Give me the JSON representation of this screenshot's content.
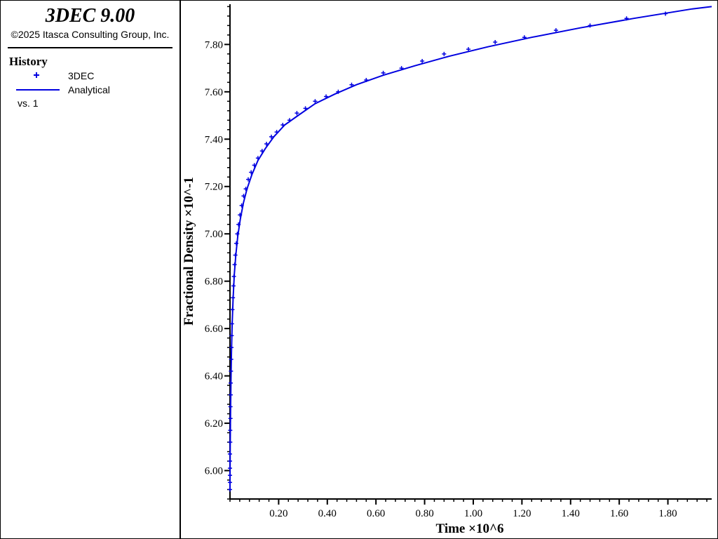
{
  "app": {
    "title": "3DEC 9.00",
    "copyright": "©2025 Itasca Consulting Group, Inc."
  },
  "legend": {
    "title": "History",
    "items": [
      {
        "label": "3DEC",
        "marker": "plus",
        "color": "#0000e0"
      },
      {
        "label": "Analytical",
        "marker": "line",
        "color": "#0000e0"
      }
    ],
    "vs": "vs. 1"
  },
  "chart_data": {
    "type": "line",
    "xlabel": "Time ×10^6",
    "ylabel": "Fractional Density ×10^-1",
    "xlim": [
      0,
      1.98
    ],
    "ylim": [
      5.88,
      7.97
    ],
    "x_ticks": [
      "0.20",
      "0.40",
      "0.60",
      "0.80",
      "1.00",
      "1.20",
      "1.40",
      "1.60",
      "1.80"
    ],
    "y_ticks": [
      "6.00",
      "6.20",
      "6.40",
      "6.60",
      "6.80",
      "7.00",
      "7.20",
      "7.40",
      "7.60",
      "7.80"
    ],
    "grid": false,
    "series": [
      {
        "name": "3DEC",
        "style": "markers",
        "color": "#0000e0",
        "x": [
          0,
          0,
          0,
          0,
          0,
          0,
          0.001,
          0.001,
          0.002,
          0.002,
          0.003,
          0.003,
          0.004,
          0.005,
          0.006,
          0.007,
          0.008,
          0.01,
          0.012,
          0.014,
          0.016,
          0.019,
          0.022,
          0.026,
          0.03,
          0.035,
          0.041,
          0.048,
          0.056,
          0.065,
          0.075,
          0.087,
          0.1,
          0.115,
          0.132,
          0.15,
          0.17,
          0.192,
          0.217,
          0.245,
          0.275,
          0.31,
          0.35,
          0.395,
          0.445,
          0.5,
          0.56,
          0.63,
          0.705,
          0.79,
          0.88,
          0.98,
          1.09,
          1.21,
          1.34,
          1.48,
          1.63,
          1.79
        ],
        "y": [
          5.92,
          5.95,
          5.98,
          6.01,
          6.04,
          6.07,
          6.12,
          6.17,
          6.22,
          6.27,
          6.32,
          6.37,
          6.42,
          6.47,
          6.52,
          6.57,
          6.62,
          6.68,
          6.73,
          6.78,
          6.82,
          6.87,
          6.91,
          6.96,
          7.0,
          7.04,
          7.08,
          7.12,
          7.16,
          7.19,
          7.23,
          7.26,
          7.29,
          7.32,
          7.35,
          7.38,
          7.41,
          7.43,
          7.46,
          7.48,
          7.51,
          7.53,
          7.56,
          7.58,
          7.6,
          7.63,
          7.65,
          7.68,
          7.7,
          7.73,
          7.76,
          7.78,
          7.81,
          7.83,
          7.86,
          7.88,
          7.91,
          7.93
        ]
      },
      {
        "name": "Analytical",
        "style": "line",
        "color": "#0000e0",
        "x": [
          0,
          0.001,
          0.002,
          0.004,
          0.006,
          0.009,
          0.013,
          0.018,
          0.024,
          0.032,
          0.042,
          0.055,
          0.07,
          0.09,
          0.115,
          0.145,
          0.18,
          0.225,
          0.28,
          0.35,
          0.43,
          0.52,
          0.63,
          0.76,
          0.9,
          1.06,
          1.24,
          1.44,
          1.66,
          1.9,
          1.98
        ],
        "y": [
          5.92,
          6.1,
          6.22,
          6.38,
          6.5,
          6.62,
          6.73,
          6.83,
          6.91,
          6.99,
          7.06,
          7.13,
          7.19,
          7.25,
          7.31,
          7.36,
          7.41,
          7.46,
          7.5,
          7.55,
          7.59,
          7.63,
          7.67,
          7.71,
          7.75,
          7.79,
          7.83,
          7.87,
          7.91,
          7.95,
          7.96
        ]
      }
    ]
  }
}
